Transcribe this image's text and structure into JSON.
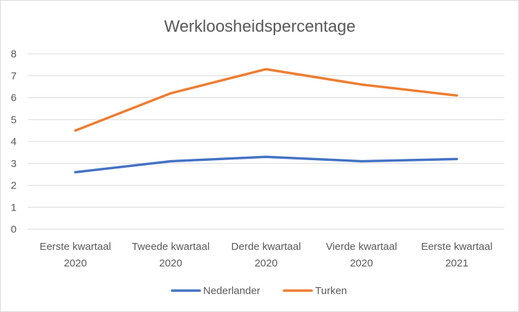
{
  "chart_data": {
    "type": "line",
    "title": "Werkloosheidspercentage",
    "xlabel": "",
    "ylabel": "",
    "categories": [
      [
        "Eerste kwartaal",
        "2020"
      ],
      [
        "Tweede kwartaal",
        "2020"
      ],
      [
        "Derde kwartaal",
        "2020"
      ],
      [
        "Vierde kwartaal",
        "2020"
      ],
      [
        "Eerste kwartaal",
        "2021"
      ]
    ],
    "series": [
      {
        "name": "Nederlander",
        "color": "#4472c4",
        "values": [
          2.6,
          3.1,
          3.3,
          3.1,
          3.2
        ]
      },
      {
        "name": "Turken",
        "color": "#ed7d31",
        "values": [
          4.5,
          6.2,
          7.3,
          6.6,
          6.1
        ]
      }
    ],
    "ylim": [
      0,
      8
    ],
    "yticks": [
      "0",
      "1",
      "2",
      "3",
      "4",
      "5",
      "6",
      "7",
      "8"
    ],
    "grid": true,
    "legend_position": "bottom"
  }
}
